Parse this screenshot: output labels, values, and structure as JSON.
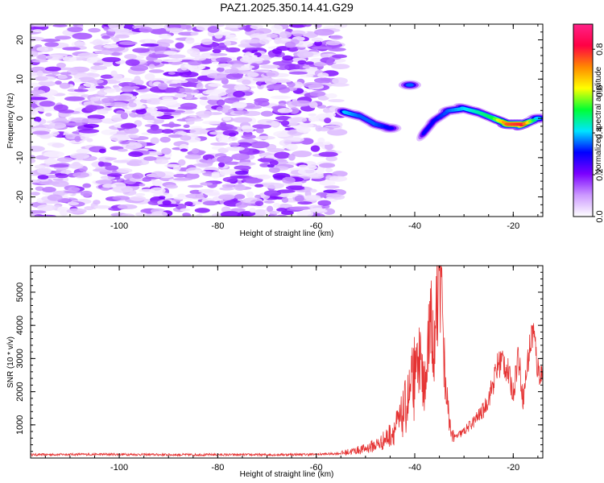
{
  "title": "PAZ1.2025.350.14.41.G29",
  "chart_data": [
    {
      "type": "heatmap",
      "title": "PAZ1.2025.350.14.41.G29",
      "xlabel": "Height of straight line (km)",
      "ylabel": "Frequency (Hz)",
      "xlim": [
        -118,
        -14
      ],
      "ylim": [
        -25,
        24
      ],
      "xticks": [
        -100,
        -80,
        -60,
        -40,
        -20
      ],
      "xtick_labels": [
        "-100",
        "-80",
        "-60",
        "-40",
        "-20"
      ],
      "yticks": [
        -20,
        -10,
        0,
        10,
        20
      ],
      "ytick_labels": [
        "-20",
        "-10",
        "0",
        "10",
        "20"
      ],
      "noise_region_end_km": -55,
      "signal_track": [
        {
          "x": -54,
          "y": 1.5,
          "amp": 0.4
        },
        {
          "x": -51,
          "y": 0.5,
          "amp": 0.35
        },
        {
          "x": -48,
          "y": -1.5,
          "amp": 0.35
        },
        {
          "x": -45,
          "y": -2.5,
          "amp": 0.3
        },
        {
          "x": -41,
          "y": 8.5,
          "amp": 0.35
        },
        {
          "x": -38,
          "y": -3.5,
          "amp": 0.3
        },
        {
          "x": -36,
          "y": -0.5,
          "amp": 0.3
        },
        {
          "x": -33,
          "y": 2.0,
          "amp": 0.35
        },
        {
          "x": -30,
          "y": 2.5,
          "amp": 0.4
        },
        {
          "x": -27,
          "y": 1.5,
          "amp": 0.45
        },
        {
          "x": -24,
          "y": 0.0,
          "amp": 0.5
        },
        {
          "x": -21,
          "y": -1.5,
          "amp": 0.75
        },
        {
          "x": -18,
          "y": -1.5,
          "amp": 0.8
        },
        {
          "x": -15,
          "y": 0.0,
          "amp": 0.4
        }
      ]
    },
    {
      "type": "line",
      "xlabel": "Height of straight line (km)",
      "ylabel": "SNR (10 * v/v)",
      "xlim": [
        -118,
        -14
      ],
      "ylim": [
        0,
        5800
      ],
      "xticks": [
        -100,
        -80,
        -60,
        -40,
        -20
      ],
      "xtick_labels": [
        "-100",
        "-80",
        "-60",
        "-40",
        "-20"
      ],
      "yticks": [
        1000,
        2000,
        3000,
        4000,
        5000
      ],
      "ytick_labels": [
        "1000",
        "2000",
        "3000",
        "4000",
        "5000"
      ],
      "color": "#e53333",
      "series": [
        {
          "x": [
            -118,
            -110,
            -100,
            -90,
            -80,
            -70,
            -60,
            -55,
            -50,
            -47,
            -45,
            -43,
            -41,
            -39,
            -38,
            -37,
            -36,
            -35,
            -34,
            -33,
            -32,
            -30,
            -28,
            -26,
            -25,
            -24,
            -23,
            -22,
            -21,
            -20,
            -19,
            -18,
            -17,
            -16,
            -15,
            -14
          ],
          "values": [
            100,
            110,
            110,
            100,
            100,
            100,
            110,
            140,
            280,
            450,
            700,
            1100,
            1900,
            3000,
            2000,
            4300,
            3500,
            5800,
            2800,
            1000,
            600,
            800,
            1100,
            1450,
            1800,
            2300,
            2850,
            2950,
            2550,
            1950,
            3150,
            1750,
            2950,
            3900,
            2650,
            2500
          ]
        }
      ]
    },
    {
      "type": "colorbar",
      "label": "Normalized spectral amplitude",
      "range": [
        0,
        0.92
      ],
      "ticks": [
        0.0,
        0.2,
        0.4,
        0.6,
        0.8
      ],
      "tick_labels": [
        "0.0",
        "0.2",
        "0.4",
        "0.6",
        "0.8"
      ],
      "colors": [
        "#ffffff",
        "#cc99ff",
        "#7b00ff",
        "#0000ff",
        "#00e5ff",
        "#00ff33",
        "#ffff00",
        "#ff8800",
        "#ff0044",
        "#ff2288"
      ]
    }
  ]
}
